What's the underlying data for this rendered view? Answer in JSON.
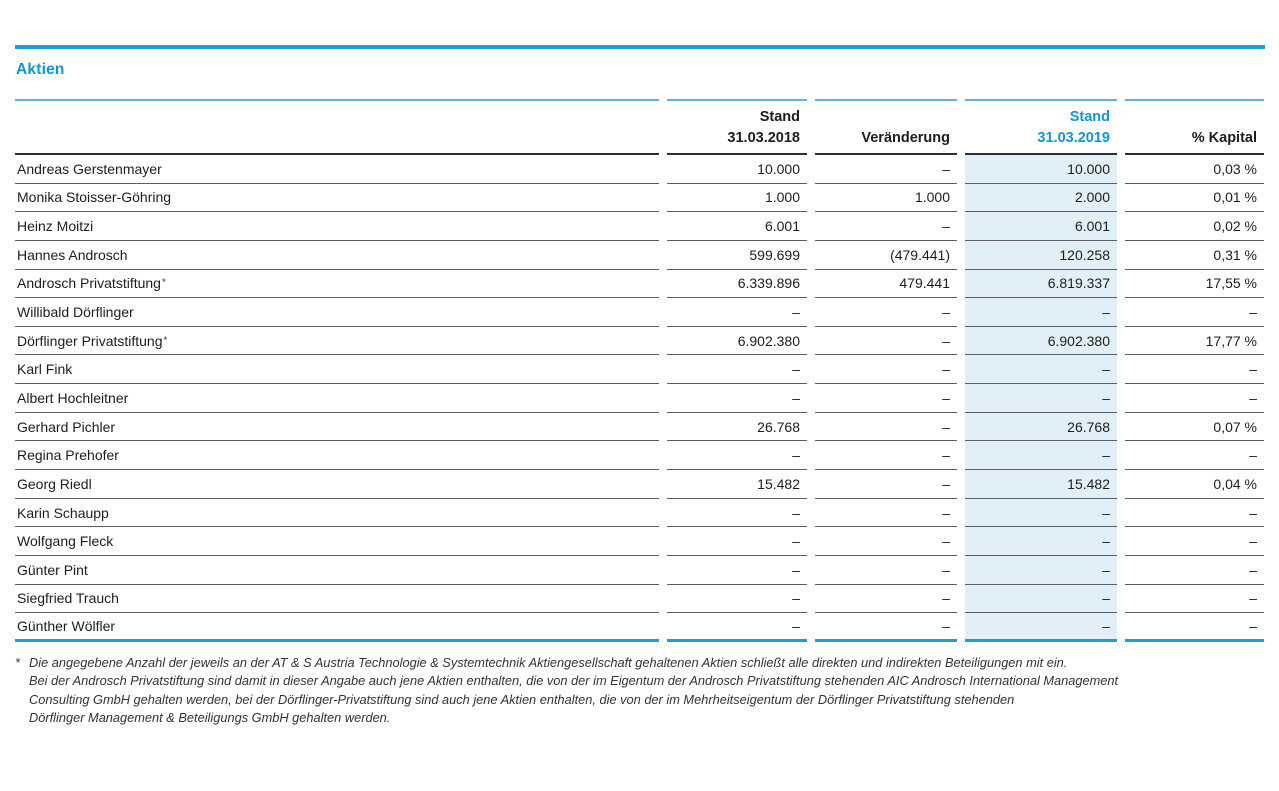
{
  "colors": {
    "accent-blue": "#0e95d8",
    "rule-blue": "#1e9ad8",
    "rule-light-blue": "#5bb2e3",
    "highlight": "#e1eff8"
  },
  "section": {
    "title": "Aktien"
  },
  "table": {
    "header": {
      "stand_2018": [
        "Stand",
        "31.03.2018"
      ],
      "veraenderung": "Veränderung",
      "stand_2019": [
        "Stand",
        "31.03.2019"
      ],
      "kapital": "% Kapital"
    },
    "rows": [
      {
        "name": "Andreas Gerstenmayer",
        "stand_2018": "10.000",
        "veraenderung": "–",
        "stand_2019": "10.000",
        "kapital": "0,03 %"
      },
      {
        "name": "Monika Stoisser-Göhring",
        "stand_2018": "1.000",
        "veraenderung": "1.000",
        "stand_2019": "2.000",
        "kapital": "0,01 %"
      },
      {
        "name": "Heinz Moitzi",
        "stand_2018": "6.001",
        "veraenderung": "–",
        "stand_2019": "6.001",
        "kapital": "0,02 %"
      },
      {
        "name": "Hannes Androsch",
        "stand_2018": "599.699",
        "veraenderung": "(479.441)",
        "stand_2019": "120.258",
        "kapital": "0,31 %"
      },
      {
        "name": "Androsch Privatstiftung",
        "sup": "*",
        "stand_2018": "6.339.896",
        "veraenderung": "479.441",
        "stand_2019": "6.819.337",
        "kapital": "17,55 %"
      },
      {
        "name": "Willibald Dörflinger",
        "stand_2018": "–",
        "veraenderung": "–",
        "stand_2019": "–",
        "kapital": "–"
      },
      {
        "name": "Dörflinger Privatstiftung",
        "sup": "*",
        "stand_2018": "6.902.380",
        "veraenderung": "–",
        "stand_2019": "6.902.380",
        "kapital": "17,77 %"
      },
      {
        "name": "Karl Fink",
        "stand_2018": "–",
        "veraenderung": "–",
        "stand_2019": "–",
        "kapital": "–"
      },
      {
        "name": "Albert Hochleitner",
        "stand_2018": "–",
        "veraenderung": "–",
        "stand_2019": "–",
        "kapital": "–"
      },
      {
        "name": "Gerhard Pichler",
        "stand_2018": "26.768",
        "veraenderung": "–",
        "stand_2019": "26.768",
        "kapital": "0,07 %"
      },
      {
        "name": "Regina Prehofer",
        "stand_2018": "–",
        "veraenderung": "–",
        "stand_2019": "–",
        "kapital": "–"
      },
      {
        "name": "Georg Riedl",
        "stand_2018": "15.482",
        "veraenderung": "–",
        "stand_2019": "15.482",
        "kapital": "0,04 %"
      },
      {
        "name": "Karin Schaupp",
        "stand_2018": "–",
        "veraenderung": "–",
        "stand_2019": "–",
        "kapital": "–"
      },
      {
        "name": "Wolfgang Fleck",
        "stand_2018": "–",
        "veraenderung": "–",
        "stand_2019": "–",
        "kapital": "–"
      },
      {
        "name": "Günter Pint",
        "stand_2018": "–",
        "veraenderung": "–",
        "stand_2019": "–",
        "kapital": "–"
      },
      {
        "name": "Siegfried Trauch",
        "stand_2018": "–",
        "veraenderung": "–",
        "stand_2019": "–",
        "kapital": "–"
      },
      {
        "name": "Günther Wölfler",
        "stand_2018": "–",
        "veraenderung": "–",
        "stand_2019": "–",
        "kapital": "–"
      }
    ]
  },
  "footnote": {
    "marker": "*",
    "lines": [
      "Die angegebene Anzahl der jeweils an der AT & S Austria Technologie & Systemtechnik Aktiengesellschaft gehaltenen Aktien schließt alle direkten und indirekten Beteiligungen mit ein.",
      "Bei der Androsch Privatstiftung sind damit in dieser Angabe auch jene Aktien enthalten, die von der im Eigentum der Androsch Privatstiftung stehenden AIC Androsch International Management",
      "Consulting GmbH gehalten werden, bei der Dörflinger-Privatstiftung sind auch jene Aktien enthalten, die von der im Mehrheitseigentum der Dörflinger Privatstiftung stehenden",
      "Dörflinger Management & Beteiligungs GmbH gehalten werden."
    ]
  }
}
